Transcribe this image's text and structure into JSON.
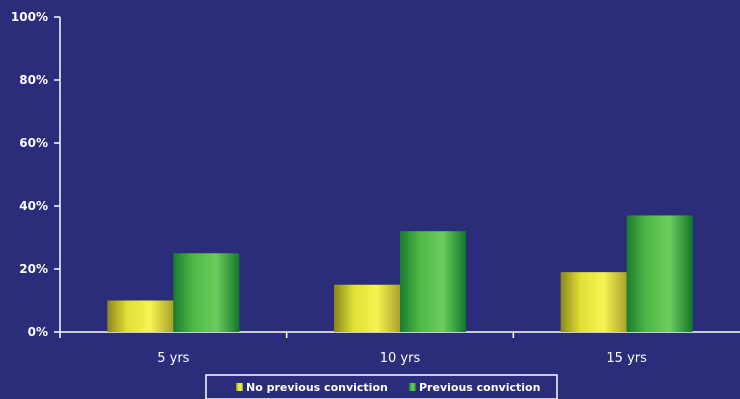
{
  "chart_data": {
    "type": "bar",
    "categories": [
      "5 yrs",
      "10 yrs",
      "15 yrs"
    ],
    "series": [
      {
        "name": "No previous conviction",
        "values": [
          10,
          15,
          19
        ],
        "color": "#e9e93a"
      },
      {
        "name": "Previous conviction",
        "values": [
          25,
          32,
          37
        ],
        "color": "#3fae3f"
      }
    ],
    "ylim": [
      0,
      100
    ],
    "yticks": [
      "0%",
      "20%",
      "40%",
      "60%",
      "80%",
      "100%"
    ],
    "ytick_values": [
      0,
      20,
      40,
      60,
      80,
      100
    ],
    "legend": "bottom",
    "grid": false,
    "colors": {
      "background": "#2b2d7a",
      "axis": "#ffffff"
    }
  }
}
